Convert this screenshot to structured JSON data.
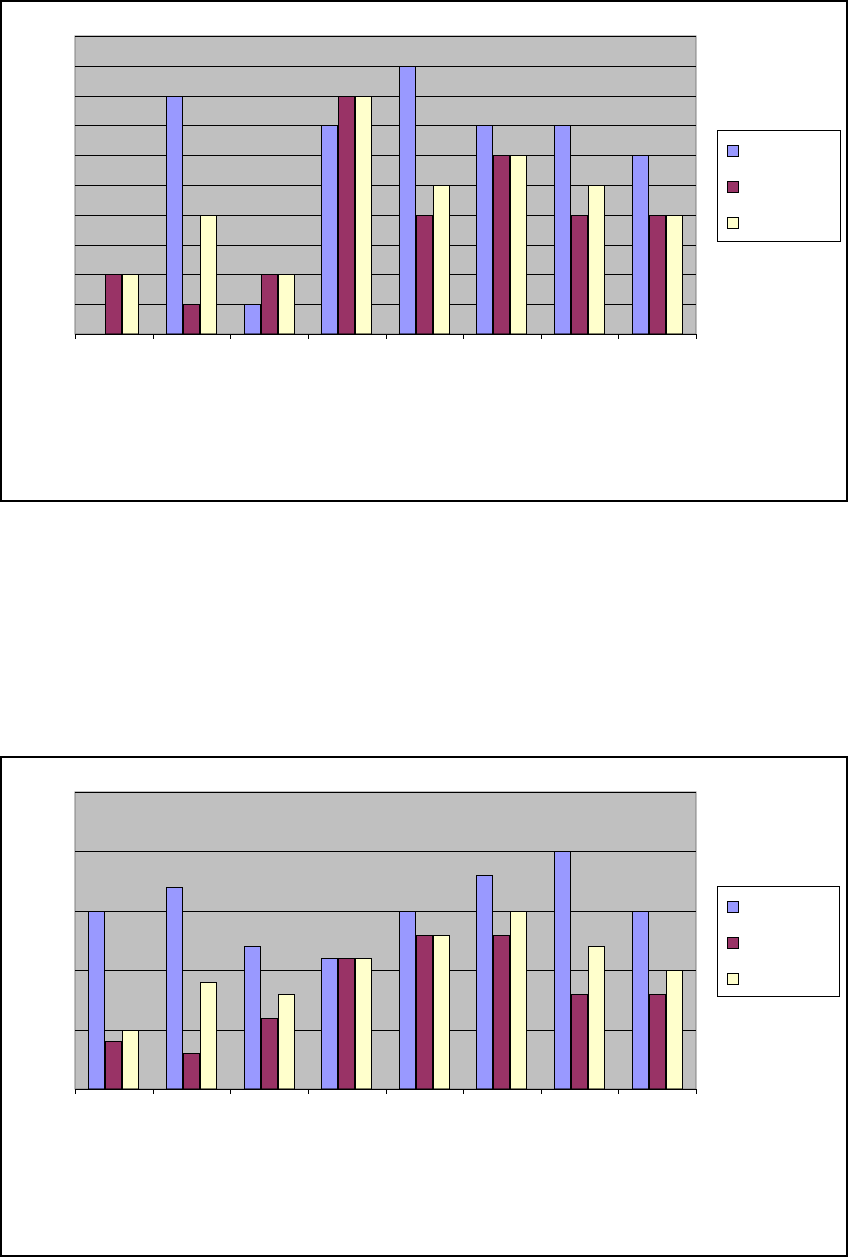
{
  "colors": {
    "plot_background": "#c0c0c0",
    "gridline": "#000000",
    "axis": "#000000",
    "series": [
      "#9999ff",
      "#993366",
      "#ffffcc"
    ]
  },
  "chart_data": [
    {
      "type": "bar",
      "title": "",
      "xlabel": "",
      "ylabel": "",
      "grid": true,
      "legend_position": "right",
      "ylim": [
        0,
        10
      ],
      "y_gridline_step": 1,
      "categories": [
        "",
        "",
        "",
        "",
        "",
        "",
        "",
        ""
      ],
      "series": [
        {
          "name": "",
          "values": [
            0,
            8,
            1,
            7,
            9,
            7,
            7,
            6
          ]
        },
        {
          "name": "",
          "values": [
            2,
            1,
            2,
            8,
            4,
            6,
            4,
            4
          ]
        },
        {
          "name": "",
          "values": [
            2,
            4,
            2,
            8,
            5,
            6,
            5,
            4
          ]
        }
      ]
    },
    {
      "type": "bar",
      "title": "",
      "xlabel": "",
      "ylabel": "",
      "grid": true,
      "legend_position": "right",
      "ylim": [
        0,
        5
      ],
      "y_gridline_step": 1,
      "categories": [
        "",
        "",
        "",
        "",
        "",
        "",
        "",
        ""
      ],
      "series": [
        {
          "name": "",
          "values": [
            3,
            3.4,
            2.4,
            2.2,
            3,
            3.6,
            4,
            3
          ]
        },
        {
          "name": "",
          "values": [
            0.8,
            0.6,
            1.2,
            2.2,
            2.6,
            2.6,
            1.6,
            1.6
          ]
        },
        {
          "name": "",
          "values": [
            1,
            1.8,
            1.6,
            2.2,
            2.6,
            3,
            2.4,
            2
          ]
        }
      ]
    }
  ]
}
